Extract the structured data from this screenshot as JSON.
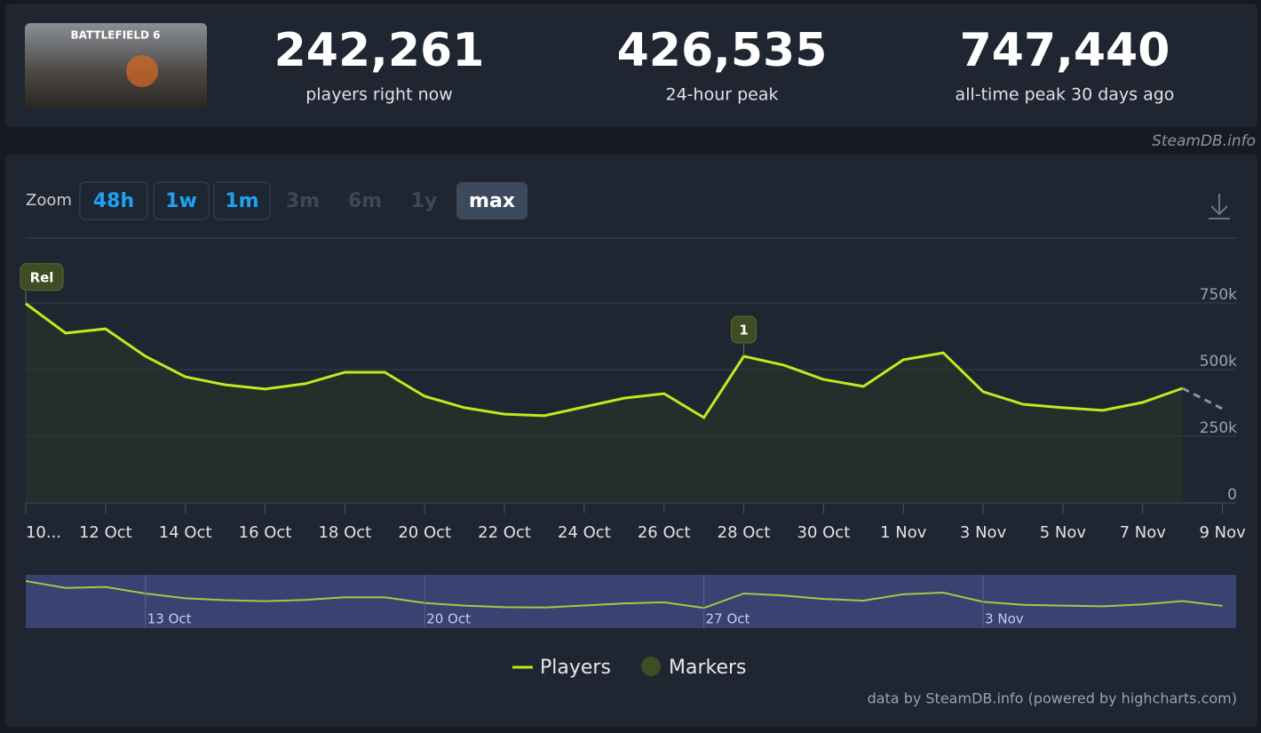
{
  "header": {
    "game_title": "BATTLEFIELD 6",
    "stats": [
      {
        "value": "242,261",
        "label": "players right now"
      },
      {
        "value": "426,535",
        "label": "24-hour peak"
      },
      {
        "value": "747,440",
        "label": "all-time peak 30 days ago"
      }
    ],
    "watermark": "SteamDB.info"
  },
  "zoom": {
    "label": "Zoom",
    "buttons": [
      "48h",
      "1w",
      "1m",
      "3m",
      "6m",
      "1y",
      "max"
    ]
  },
  "chart_data": {
    "type": "line",
    "categories": [
      "10...",
      null,
      "12 Oct",
      null,
      "14 Oct",
      null,
      "16 Oct",
      null,
      "18 Oct",
      null,
      "20 Oct",
      null,
      "22 Oct",
      null,
      "24 Oct",
      null,
      "26 Oct",
      null,
      "28 Oct",
      null,
      "30 Oct",
      null,
      "1 Nov",
      null,
      "3 Nov",
      null,
      "5 Nov",
      null,
      "7 Nov",
      null,
      "9 Nov"
    ],
    "series": [
      {
        "name": "Players",
        "color": "#b8ee1e",
        "values": [
          747440,
          637000,
          653000,
          550000,
          473000,
          443000,
          427000,
          447000,
          490000,
          490000,
          400000,
          357000,
          333000,
          327000,
          360000,
          393000,
          410000,
          320000,
          550000,
          517000,
          463000,
          437000,
          537000,
          563000,
          417000,
          370000,
          357000,
          347000,
          377000,
          430000,
          353000
        ]
      }
    ],
    "last_point_dashed": true,
    "markers": [
      {
        "label": "Rel",
        "at": 0
      },
      {
        "label": "1",
        "at": 18
      }
    ],
    "markers_legend": {
      "name": "Markers",
      "color": "#3e4d24"
    },
    "ylim": [
      0,
      1000000
    ],
    "yticks": [
      0,
      {
        "value": 250000,
        "label": "250k"
      },
      {
        "value": 500000,
        "label": "500k"
      },
      {
        "value": 750000,
        "label": "750k"
      }
    ],
    "grid": true,
    "navigator": {
      "ticks": [
        {
          "label": "13 Oct",
          "at": 3
        },
        {
          "label": "20 Oct",
          "at": 10
        },
        {
          "label": "27 Oct",
          "at": 17
        },
        {
          "label": "3 Nov",
          "at": 24
        }
      ]
    },
    "credit": "data by SteamDB.info (powered by highcharts.com)"
  }
}
